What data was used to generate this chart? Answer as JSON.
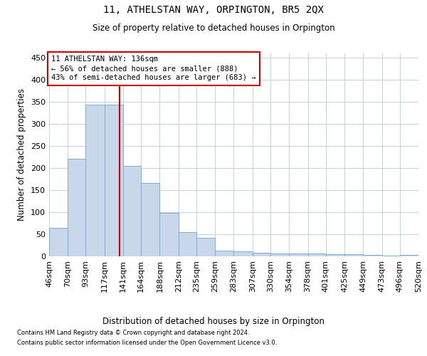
{
  "title": "11, ATHELSTAN WAY, ORPINGTON, BR5 2QX",
  "subtitle": "Size of property relative to detached houses in Orpington",
  "xlabel": "Distribution of detached houses by size in Orpington",
  "ylabel": "Number of detached properties",
  "footnote1": "Contains HM Land Registry data © Crown copyright and database right 2024.",
  "footnote2": "Contains public sector information licensed under the Open Government Licence v3.0.",
  "annotation_line1": "11 ATHELSTAN WAY: 136sqm",
  "annotation_line2": "← 56% of detached houses are smaller (888)",
  "annotation_line3": "43% of semi-detached houses are larger (683) →",
  "bar_color": "#c8d8ea",
  "bar_edgecolor": "#7bafd4",
  "vline_color": "#cc0000",
  "annotation_box_edgecolor": "#cc0000",
  "annotation_box_facecolor": "#ffffff",
  "background_color": "#ffffff",
  "grid_color": "#c8d4e0",
  "bin_labels": [
    "46sqm",
    "70sqm",
    "93sqm",
    "117sqm",
    "141sqm",
    "164sqm",
    "188sqm",
    "212sqm",
    "235sqm",
    "259sqm",
    "283sqm",
    "307sqm",
    "330sqm",
    "354sqm",
    "378sqm",
    "401sqm",
    "425sqm",
    "449sqm",
    "473sqm",
    "496sqm",
    "520sqm"
  ],
  "bin_edges": [
    46,
    70,
    93,
    117,
    141,
    164,
    188,
    212,
    235,
    259,
    283,
    307,
    330,
    354,
    378,
    401,
    425,
    449,
    473,
    496,
    520
  ],
  "counts": [
    65,
    221,
    344,
    344,
    205,
    167,
    98,
    55,
    42,
    13,
    12,
    8,
    7,
    7,
    6,
    5,
    5,
    4,
    1,
    3
  ],
  "vline_x": 136,
  "ylim": [
    0,
    460
  ],
  "xlim": [
    46,
    520
  ],
  "yticks": [
    0,
    50,
    100,
    150,
    200,
    250,
    300,
    350,
    400,
    450
  ]
}
